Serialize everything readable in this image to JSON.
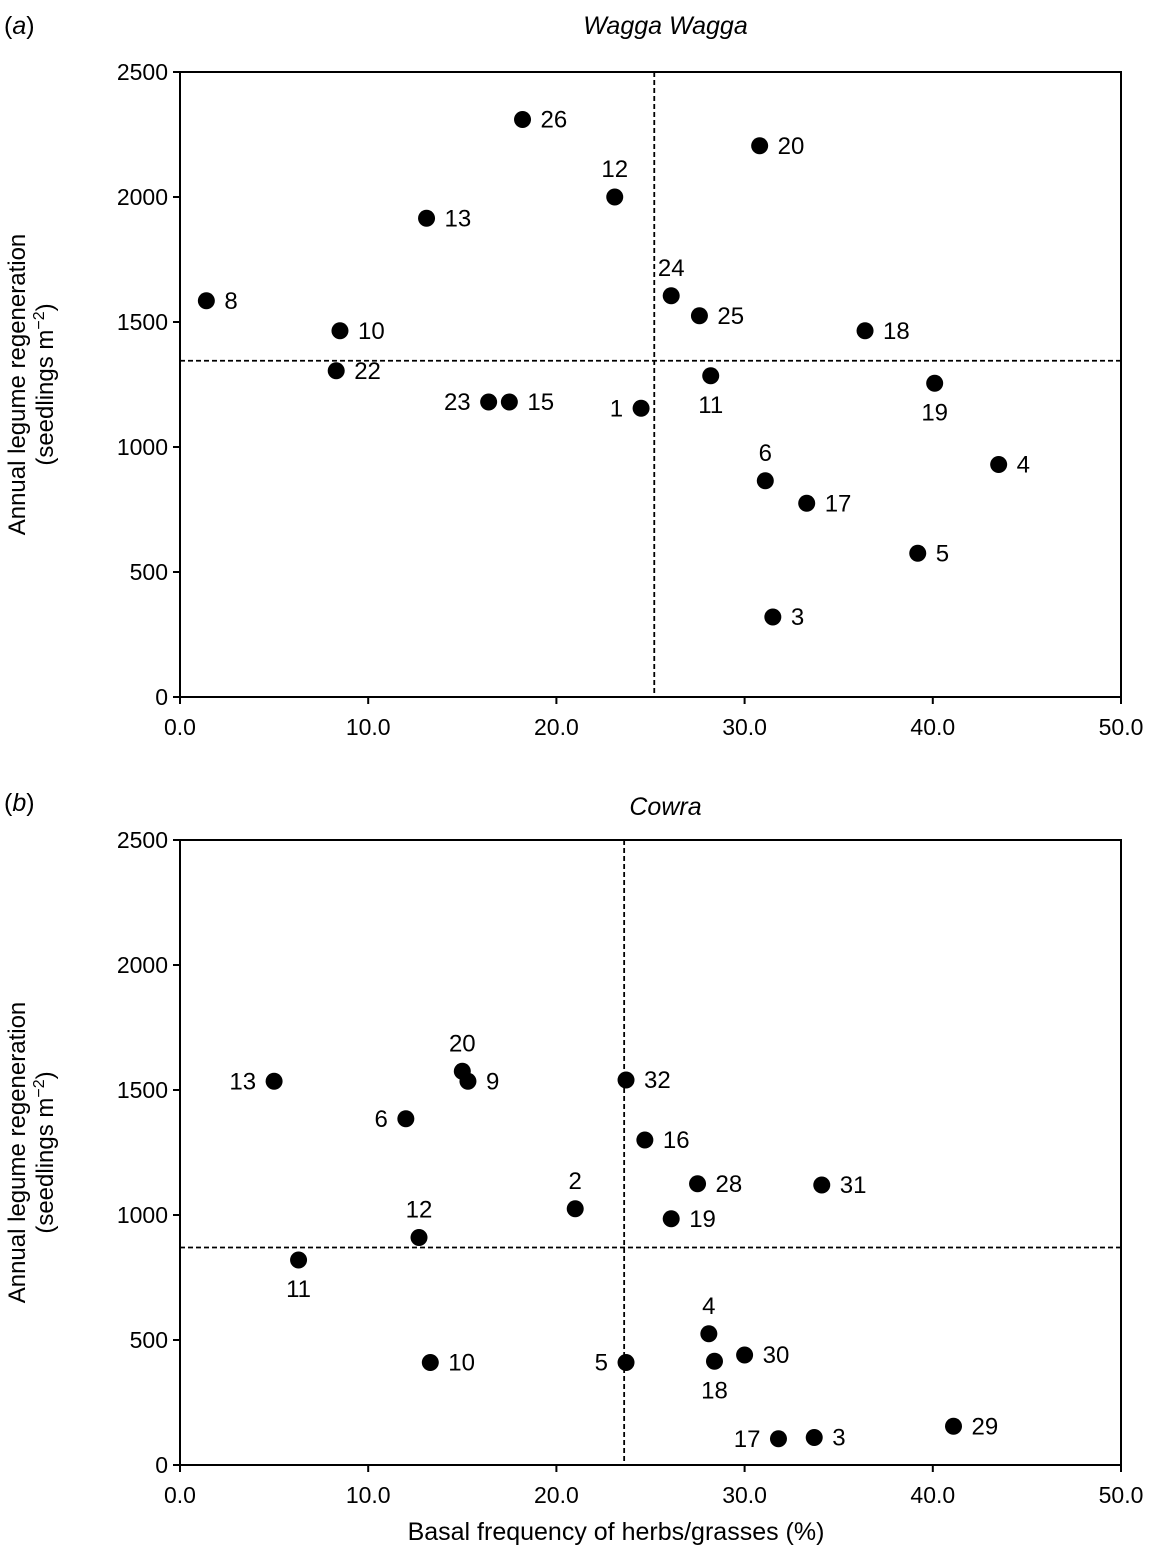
{
  "figure": {
    "xlabel": "Basal frequency of herbs/grasses (%)"
  },
  "chart_data": [
    {
      "type": "scatter",
      "panel_label": "(a)",
      "title": "Wagga Wagga",
      "xlabel": "",
      "ylabel": "Annual legume regeneration",
      "ylabel_line2": "(seedlings m−2)",
      "xlim": [
        0,
        50
      ],
      "ylim": [
        0,
        2500
      ],
      "x_ticks": [
        "0.0",
        "10.0",
        "20.0",
        "30.0",
        "40.0",
        "50.0"
      ],
      "y_ticks": [
        "0",
        "500",
        "1000",
        "1500",
        "2000",
        "2500"
      ],
      "reference_lines": {
        "x": 25.2,
        "y": 1345
      },
      "points": [
        {
          "label": "8",
          "x": 1.4,
          "y": 1585,
          "label_pos": "right"
        },
        {
          "label": "10",
          "x": 8.5,
          "y": 1465,
          "label_pos": "right"
        },
        {
          "label": "22",
          "x": 8.3,
          "y": 1305,
          "label_pos": "right"
        },
        {
          "label": "13",
          "x": 13.1,
          "y": 1915,
          "label_pos": "right"
        },
        {
          "label": "23",
          "x": 16.4,
          "y": 1180,
          "label_pos": "left"
        },
        {
          "label": "15",
          "x": 17.5,
          "y": 1180,
          "label_pos": "right"
        },
        {
          "label": "26",
          "x": 18.2,
          "y": 2310,
          "label_pos": "right"
        },
        {
          "label": "12",
          "x": 23.1,
          "y": 2000,
          "label_pos": "above"
        },
        {
          "label": "1",
          "x": 24.5,
          "y": 1155,
          "label_pos": "left"
        },
        {
          "label": "24",
          "x": 26.1,
          "y": 1605,
          "label_pos": "above"
        },
        {
          "label": "25",
          "x": 27.6,
          "y": 1525,
          "label_pos": "right"
        },
        {
          "label": "11",
          "x": 28.2,
          "y": 1285,
          "label_pos": "below"
        },
        {
          "label": "20",
          "x": 30.8,
          "y": 2205,
          "label_pos": "right"
        },
        {
          "label": "6",
          "x": 31.1,
          "y": 865,
          "label_pos": "above"
        },
        {
          "label": "3",
          "x": 31.5,
          "y": 320,
          "label_pos": "right"
        },
        {
          "label": "17",
          "x": 33.3,
          "y": 775,
          "label_pos": "right"
        },
        {
          "label": "18",
          "x": 36.4,
          "y": 1465,
          "label_pos": "right"
        },
        {
          "label": "5",
          "x": 39.2,
          "y": 575,
          "label_pos": "right"
        },
        {
          "label": "19",
          "x": 40.1,
          "y": 1255,
          "label_pos": "below"
        },
        {
          "label": "4",
          "x": 43.5,
          "y": 930,
          "label_pos": "right"
        }
      ]
    },
    {
      "type": "scatter",
      "panel_label": "(b)",
      "title": "Cowra",
      "xlabel": "Basal frequency of herbs/grasses (%)",
      "ylabel": "Annual legume regeneration",
      "ylabel_line2": "(seedlings m−2)",
      "xlim": [
        0,
        50
      ],
      "ylim": [
        0,
        2500
      ],
      "x_ticks": [
        "0.0",
        "10.0",
        "20.0",
        "30.0",
        "40.0",
        "50.0"
      ],
      "y_ticks": [
        "0",
        "500",
        "1000",
        "1500",
        "2000",
        "2500"
      ],
      "reference_lines": {
        "x": 23.6,
        "y": 870
      },
      "points": [
        {
          "label": "13",
          "x": 5.0,
          "y": 1535,
          "label_pos": "left"
        },
        {
          "label": "11",
          "x": 6.3,
          "y": 820,
          "label_pos": "below"
        },
        {
          "label": "6",
          "x": 12.0,
          "y": 1385,
          "label_pos": "left"
        },
        {
          "label": "12",
          "x": 12.7,
          "y": 910,
          "label_pos": "above"
        },
        {
          "label": "10",
          "x": 13.3,
          "y": 410,
          "label_pos": "right"
        },
        {
          "label": "20",
          "x": 15.0,
          "y": 1575,
          "label_pos": "above"
        },
        {
          "label": "9",
          "x": 15.3,
          "y": 1535,
          "label_pos": "right"
        },
        {
          "label": "2",
          "x": 21.0,
          "y": 1025,
          "label_pos": "above"
        },
        {
          "label": "32",
          "x": 23.7,
          "y": 1540,
          "label_pos": "right"
        },
        {
          "label": "5",
          "x": 23.7,
          "y": 410,
          "label_pos": "left"
        },
        {
          "label": "16",
          "x": 24.7,
          "y": 1300,
          "label_pos": "right"
        },
        {
          "label": "19",
          "x": 26.1,
          "y": 985,
          "label_pos": "right"
        },
        {
          "label": "28",
          "x": 27.5,
          "y": 1125,
          "label_pos": "right"
        },
        {
          "label": "4",
          "x": 28.1,
          "y": 525,
          "label_pos": "above"
        },
        {
          "label": "18",
          "x": 28.4,
          "y": 415,
          "label_pos": "below"
        },
        {
          "label": "30",
          "x": 30.0,
          "y": 440,
          "label_pos": "right"
        },
        {
          "label": "17",
          "x": 31.8,
          "y": 105,
          "label_pos": "left"
        },
        {
          "label": "3",
          "x": 33.7,
          "y": 110,
          "label_pos": "right"
        },
        {
          "label": "31",
          "x": 34.1,
          "y": 1120,
          "label_pos": "right"
        },
        {
          "label": "29",
          "x": 41.1,
          "y": 155,
          "label_pos": "right"
        }
      ]
    }
  ]
}
